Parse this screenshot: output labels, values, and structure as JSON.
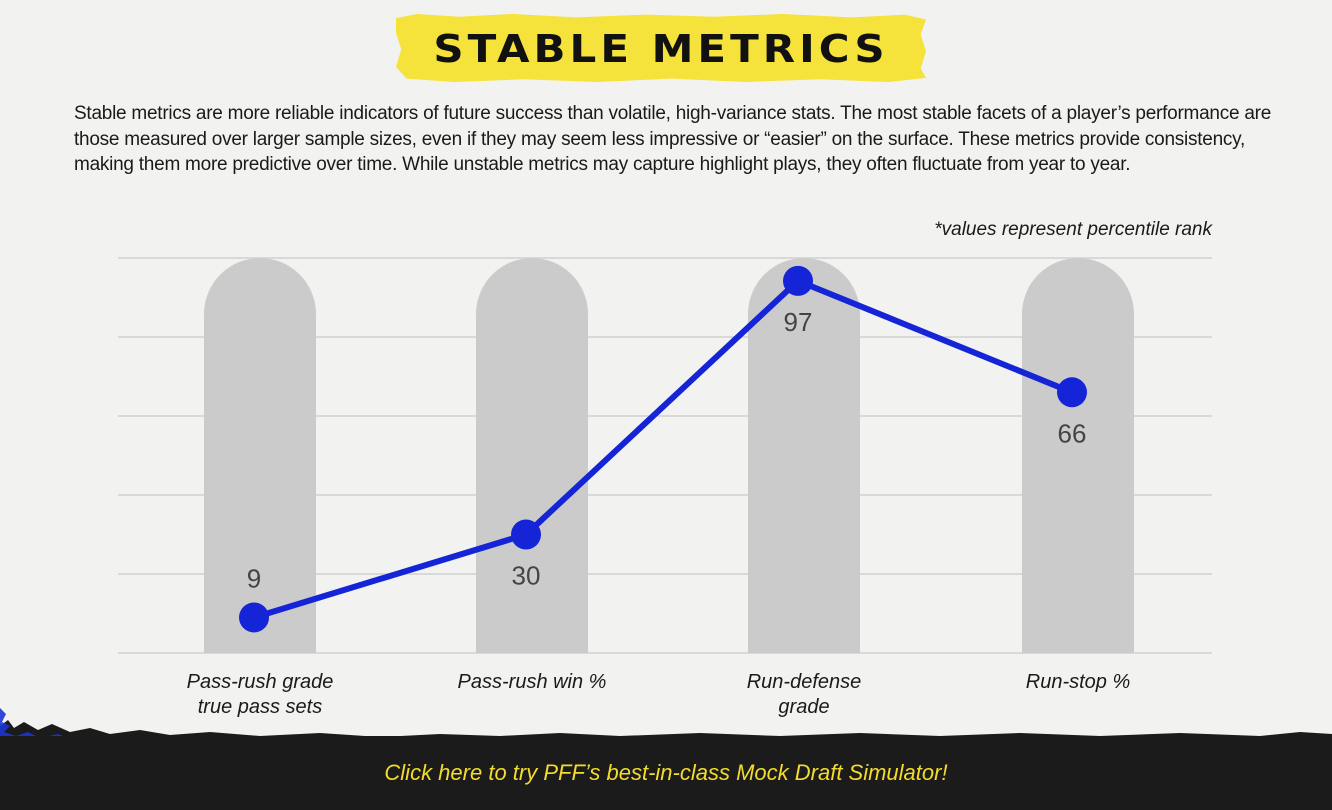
{
  "header": {
    "title": "STABLE METRICS",
    "description": "Stable metrics are more reliable indicators of future success than volatile, high-variance stats. The most stable facets of a player’s performance are those measured over larger sample sizes, even if they may seem less impressive or “easier” on the surface. These metrics provide consistency, making them more predictive over time. While unstable metrics may capture highlight plays, they often fluctuate from year to year."
  },
  "chart_data": {
    "type": "line",
    "note": "*values represent percentile rank",
    "categories": [
      [
        "Pass-rush grade",
        "true pass sets"
      ],
      [
        "Pass-rush win %"
      ],
      [
        "Run-defense",
        "grade"
      ],
      [
        "Run-stop %"
      ]
    ],
    "values": [
      9,
      30,
      97,
      66
    ],
    "ylim": [
      0,
      100
    ],
    "grid": true,
    "colors": {
      "line": "#1424d6",
      "background_bars": "#cbcbcb",
      "gridlines": "#d9d9d9",
      "value_labels": "#444444"
    }
  },
  "footer": {
    "cta_label": "Click here to try PFF’s best-in-class Mock Draft Simulator!",
    "cta_color": "#f3dc2c",
    "background": "#1b1b1b"
  }
}
